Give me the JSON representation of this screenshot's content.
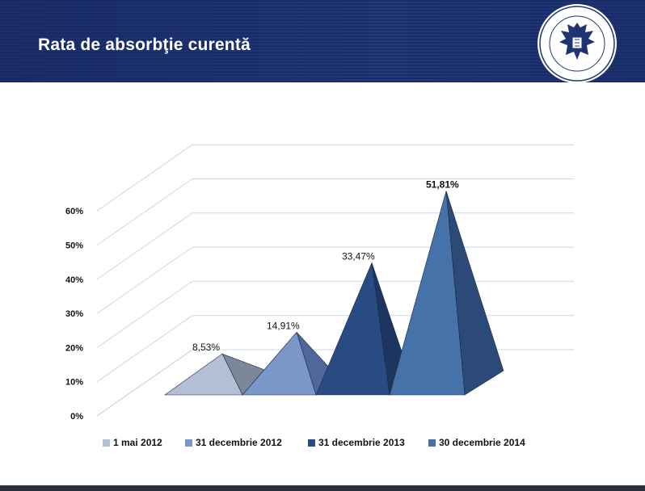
{
  "header": {
    "title": "Rata de absorbţie curentă",
    "logo_text_top": "ROMANIA",
    "logo_text_bottom": "MINISTERUL FONDURILOR EUROPENE"
  },
  "colors": {
    "header_bg": "#1f3472",
    "series": [
      "#b4bfd6",
      "#7b96c8",
      "#284b84",
      "#4672aa"
    ],
    "series_dark": [
      "#7d879a",
      "#50679b",
      "#1c365f",
      "#2c4a78"
    ],
    "grid": "#c9d9e6"
  },
  "chart_data": {
    "type": "bar",
    "style": "3d-pyramid",
    "title": "",
    "xlabel": "",
    "ylabel": "",
    "ylim": [
      0,
      60
    ],
    "y_ticks": [
      "0%",
      "10%",
      "20%",
      "30%",
      "40%",
      "50%",
      "60%"
    ],
    "grid": true,
    "legend_position": "bottom",
    "categories": [
      "1 mai 2012",
      "31 decembrie 2012",
      "31 decembrie 2013",
      "30 decembrie 2014"
    ],
    "values": [
      8.53,
      14.91,
      33.47,
      51.81
    ],
    "data_labels": [
      "8,53%",
      "14,91%",
      "33,47%",
      "51,81%"
    ]
  }
}
